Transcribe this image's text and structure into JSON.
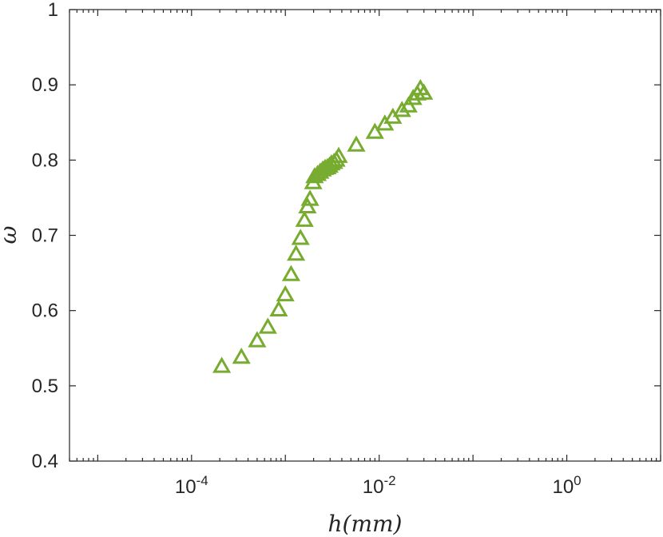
{
  "chart_data": {
    "type": "scatter",
    "xlabel": "h(mm)",
    "ylabel": "ω",
    "x_scale": "log",
    "xlim": [
      5e-06,
      10
    ],
    "ylim": [
      0.4,
      1.0
    ],
    "x_ticks": [
      {
        "value": 0.0001,
        "base": "10",
        "exp": "-4"
      },
      {
        "value": 0.01,
        "base": "10",
        "exp": "-2"
      },
      {
        "value": 1,
        "base": "10",
        "exp": "0"
      }
    ],
    "y_ticks": [
      "0.4",
      "0.5",
      "0.6",
      "0.7",
      "0.8",
      "0.9",
      "1"
    ],
    "grid": false,
    "marker": "triangle-up-open",
    "color": "#77AC30",
    "series": [
      {
        "points": [
          [
            0.00021,
            0.526
          ],
          [
            0.00034,
            0.538
          ],
          [
            0.0005,
            0.56
          ],
          [
            0.00065,
            0.578
          ],
          [
            0.00085,
            0.601
          ],
          [
            0.001,
            0.621
          ],
          [
            0.00115,
            0.648
          ],
          [
            0.0013,
            0.675
          ],
          [
            0.00145,
            0.696
          ],
          [
            0.0016,
            0.72
          ],
          [
            0.00172,
            0.738
          ],
          [
            0.00183,
            0.748
          ],
          [
            0.00198,
            0.77
          ],
          [
            0.00205,
            0.778
          ],
          [
            0.0022,
            0.781
          ],
          [
            0.00235,
            0.784
          ],
          [
            0.0025,
            0.787
          ],
          [
            0.00265,
            0.789
          ],
          [
            0.0028,
            0.79
          ],
          [
            0.00295,
            0.792
          ],
          [
            0.0031,
            0.795
          ],
          [
            0.0033,
            0.797
          ],
          [
            0.0035,
            0.8
          ],
          [
            0.0037,
            0.805
          ],
          [
            0.0057,
            0.82
          ],
          [
            0.009,
            0.837
          ],
          [
            0.0115,
            0.848
          ],
          [
            0.014,
            0.857
          ],
          [
            0.0175,
            0.866
          ],
          [
            0.0205,
            0.872
          ],
          [
            0.023,
            0.882
          ],
          [
            0.0255,
            0.888
          ],
          [
            0.0275,
            0.895
          ],
          [
            0.03,
            0.889
          ]
        ]
      }
    ]
  }
}
